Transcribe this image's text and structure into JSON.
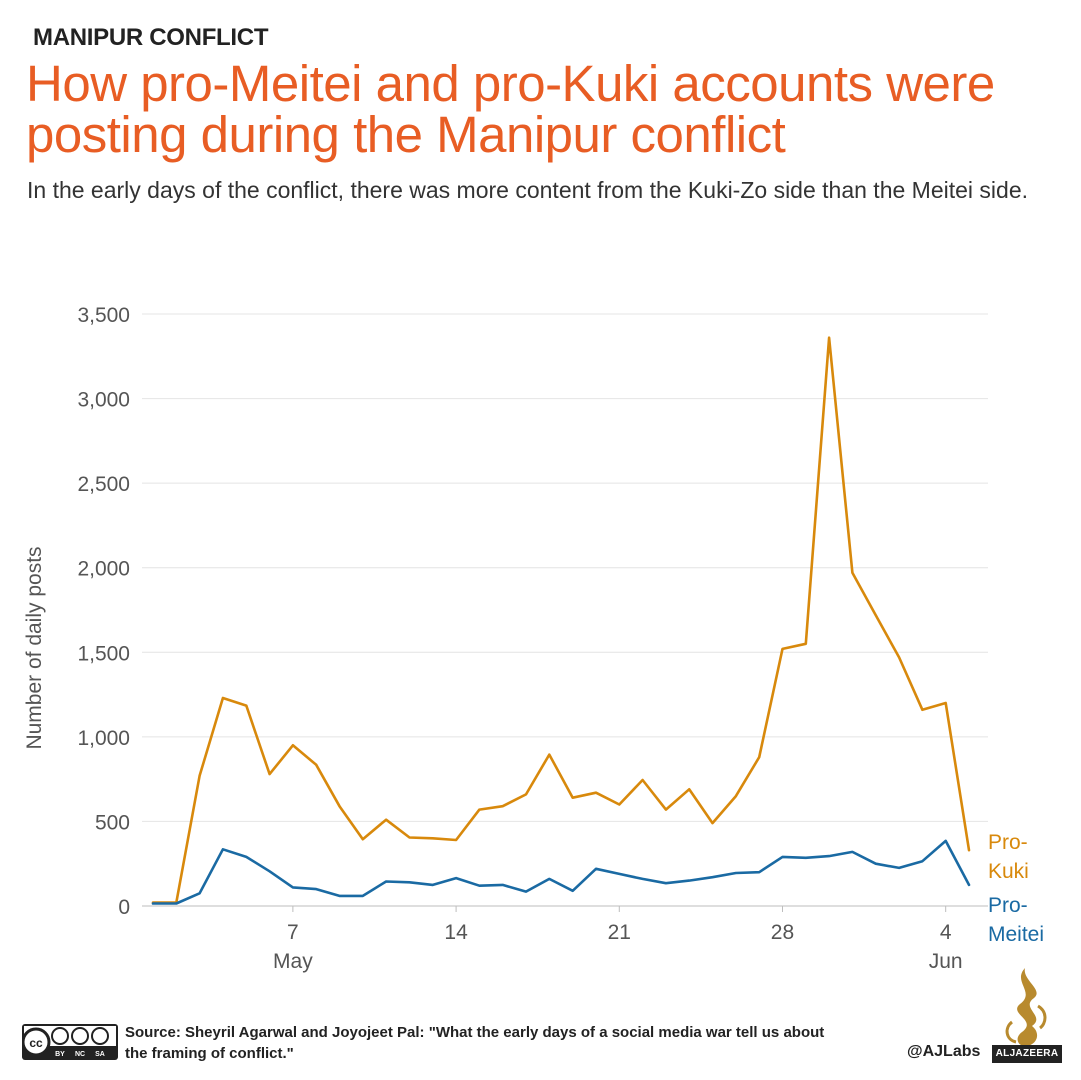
{
  "kicker": "MANIPUR CONFLICT",
  "title": "How pro-Meitei and pro-Kuki accounts were posting during the Manipur conflict",
  "subtitle": "In the early days of the conflict, there was more content from the Kuki-Zo side than the Meitei side.",
  "footer": {
    "source": "Source:  Sheyril Agarwal and Joyojeet Pal: \"What the early days of a social media war tell us about the framing of conflict.\"",
    "handle": "@AJLabs",
    "logo_text": "ALJAZEERA",
    "license_labels": [
      "BY",
      "NC",
      "SA"
    ]
  },
  "colors": {
    "accent": "#e85d24",
    "kuki": "#d8890c",
    "meitei": "#1a6aa3",
    "grid": "#e4e4e4",
    "axis_text": "#555555"
  },
  "chart_data": {
    "type": "line",
    "title": "How pro-Meitei and pro-Kuki accounts were posting during the Manipur conflict",
    "ylabel": "Number of daily posts",
    "xlabel": "",
    "ylim": [
      0,
      3500
    ],
    "yticks": [
      0,
      500,
      1000,
      1500,
      2000,
      2500,
      3000,
      3500
    ],
    "ytick_labels": [
      "0",
      "500",
      "1,000",
      "1,500",
      "2,000",
      "2,500",
      "3,000",
      "3,500"
    ],
    "xlim": [
      1,
      36
    ],
    "xticks": [
      {
        "x": 7,
        "day": "7",
        "month": "May"
      },
      {
        "x": 14,
        "day": "14",
        "month": ""
      },
      {
        "x": 21,
        "day": "21",
        "month": ""
      },
      {
        "x": 28,
        "day": "28",
        "month": ""
      },
      {
        "x": 35,
        "day": "4",
        "month": "Jun"
      }
    ],
    "x": [
      1,
      2,
      3,
      4,
      5,
      6,
      7,
      8,
      9,
      10,
      11,
      12,
      13,
      14,
      15,
      16,
      17,
      18,
      19,
      20,
      21,
      22,
      23,
      24,
      25,
      26,
      27,
      28,
      29,
      30,
      31,
      32,
      33,
      34,
      35,
      36
    ],
    "series": [
      {
        "name": "Pro-Kuki",
        "label_lines": [
          "Pro-",
          "Kuki"
        ],
        "color": "#d8890c",
        "values": [
          20,
          20,
          770,
          1230,
          1185,
          780,
          950,
          835,
          590,
          395,
          510,
          405,
          400,
          390,
          570,
          590,
          660,
          895,
          640,
          670,
          600,
          745,
          570,
          690,
          490,
          650,
          880,
          1520,
          1550,
          3360,
          1970,
          1720,
          1470,
          1160,
          1200,
          330
        ]
      },
      {
        "name": "Pro-Meitei",
        "label_lines": [
          "Pro-",
          "Meitei"
        ],
        "color": "#1a6aa3",
        "values": [
          15,
          15,
          75,
          335,
          290,
          205,
          110,
          100,
          60,
          60,
          145,
          140,
          125,
          165,
          120,
          125,
          85,
          160,
          90,
          220,
          190,
          160,
          135,
          150,
          170,
          195,
          200,
          290,
          285,
          295,
          320,
          250,
          225,
          265,
          385,
          125
        ]
      }
    ]
  }
}
